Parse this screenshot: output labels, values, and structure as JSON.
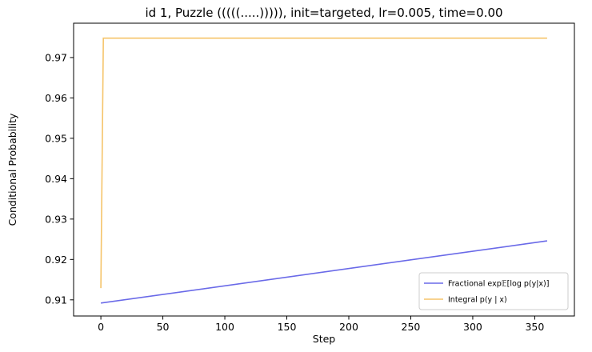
{
  "chart_data": {
    "type": "line",
    "title": "id 1, Puzzle (((((.....))))), init=targeted, lr=0.005, time=0.00",
    "xlabel": "Step",
    "ylabel": "Conditional Probability",
    "xlim": [
      -22,
      382
    ],
    "ylim": [
      0.906,
      0.9785
    ],
    "x_ticks": [
      0,
      50,
      100,
      150,
      200,
      250,
      300,
      350
    ],
    "y_ticks": [
      0.91,
      0.92,
      0.93,
      0.94,
      0.95,
      0.96,
      0.97
    ],
    "x_tick_labels": [
      "0",
      "50",
      "100",
      "150",
      "200",
      "250",
      "300",
      "350"
    ],
    "y_tick_labels": [
      "0.91",
      "0.92",
      "0.93",
      "0.94",
      "0.95",
      "0.96",
      "0.97"
    ],
    "grid": false,
    "legend_position": "lower-right",
    "series": [
      {
        "name": "Fractional exp𝔼[log p(y|x)]",
        "color": "#6a6ae8",
        "x": [
          0,
          360
        ],
        "y": [
          0.9092,
          0.9246
        ]
      },
      {
        "name": "Integral p(y | x)",
        "color": "#f5c46a",
        "x": [
          0,
          2,
          360
        ],
        "y": [
          0.9129,
          0.9748,
          0.9748
        ]
      }
    ]
  }
}
